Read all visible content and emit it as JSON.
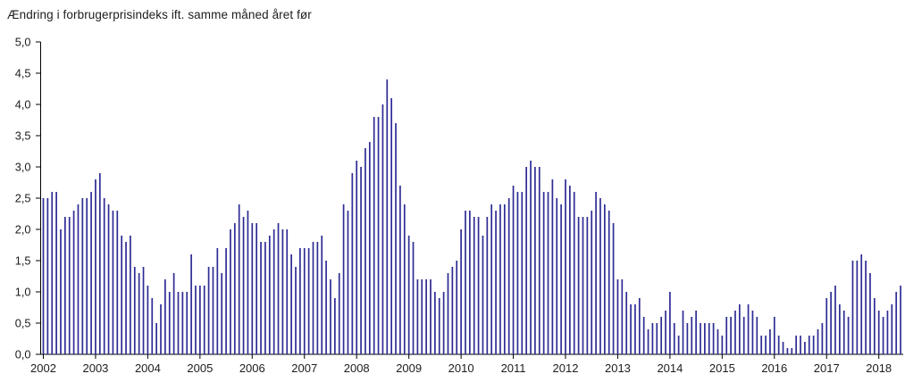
{
  "chart_data": {
    "type": "bar",
    "title": "Ændring i forbrugerprisindeks ift. samme måned året før",
    "x_tick_labels": [
      "2002",
      "2003",
      "2004",
      "2005",
      "2006",
      "2007",
      "2008",
      "2009",
      "2010",
      "2011",
      "2012",
      "2013",
      "2014",
      "2015",
      "2016",
      "2017",
      "2018"
    ],
    "x_start": "2002-01",
    "x_end": "2018-06",
    "frequency": "monthly",
    "ylim": [
      0.0,
      5.0
    ],
    "y_tick_step": 0.5,
    "y_tick_labels": [
      "0,0",
      "0,5",
      "1,0",
      "1,5",
      "2,0",
      "2,5",
      "3,0",
      "3,5",
      "4,0",
      "4,5",
      "5,0"
    ],
    "decimal_style": "comma",
    "grid": "off",
    "legend": "none",
    "bar_color": "#2e2c94",
    "axis_color": "#000000",
    "text_color": "#1d1d1b",
    "values": [
      2.5,
      2.5,
      2.6,
      2.6,
      2.0,
      2.2,
      2.2,
      2.3,
      2.4,
      2.5,
      2.5,
      2.6,
      2.8,
      2.9,
      2.5,
      2.4,
      2.3,
      2.3,
      1.9,
      1.8,
      1.9,
      1.4,
      1.3,
      1.4,
      1.1,
      0.9,
      0.5,
      0.8,
      1.2,
      1.0,
      1.3,
      1.0,
      1.0,
      1.0,
      1.6,
      1.1,
      1.1,
      1.1,
      1.4,
      1.4,
      1.7,
      1.3,
      1.7,
      2.0,
      2.1,
      2.4,
      2.2,
      2.3,
      2.1,
      2.1,
      1.8,
      1.8,
      1.9,
      2.0,
      2.1,
      2.0,
      2.0,
      1.6,
      1.4,
      1.7,
      1.7,
      1.7,
      1.8,
      1.8,
      1.9,
      1.5,
      1.2,
      0.9,
      1.3,
      2.4,
      2.3,
      2.9,
      3.1,
      3.0,
      3.3,
      3.4,
      3.8,
      3.8,
      4.0,
      4.4,
      4.1,
      3.7,
      2.7,
      2.4,
      1.9,
      1.8,
      1.2,
      1.2,
      1.2,
      1.2,
      1.0,
      0.9,
      1.0,
      1.3,
      1.4,
      1.5,
      2.0,
      2.3,
      2.3,
      2.2,
      2.2,
      1.9,
      2.2,
      2.4,
      2.3,
      2.4,
      2.4,
      2.5,
      2.7,
      2.6,
      2.6,
      3.0,
      3.1,
      3.0,
      3.0,
      2.6,
      2.6,
      2.8,
      2.5,
      2.4,
      2.8,
      2.7,
      2.6,
      2.2,
      2.2,
      2.2,
      2.3,
      2.6,
      2.5,
      2.4,
      2.3,
      2.1,
      1.2,
      1.2,
      1.0,
      0.8,
      0.8,
      0.9,
      0.6,
      0.4,
      0.5,
      0.5,
      0.6,
      0.7,
      1.0,
      0.5,
      0.3,
      0.7,
      0.5,
      0.6,
      0.7,
      0.5,
      0.5,
      0.5,
      0.5,
      0.4,
      0.3,
      0.6,
      0.6,
      0.7,
      0.8,
      0.6,
      0.8,
      0.7,
      0.6,
      0.3,
      0.3,
      0.4,
      0.6,
      0.3,
      0.2,
      0.1,
      0.1,
      0.3,
      0.3,
      0.2,
      0.3,
      0.3,
      0.4,
      0.5,
      0.9,
      1.0,
      1.1,
      0.8,
      0.7,
      0.6,
      1.5,
      1.5,
      1.6,
      1.5,
      1.3,
      0.9,
      0.7,
      0.6,
      0.7,
      0.8,
      1.0,
      1.1
    ]
  }
}
